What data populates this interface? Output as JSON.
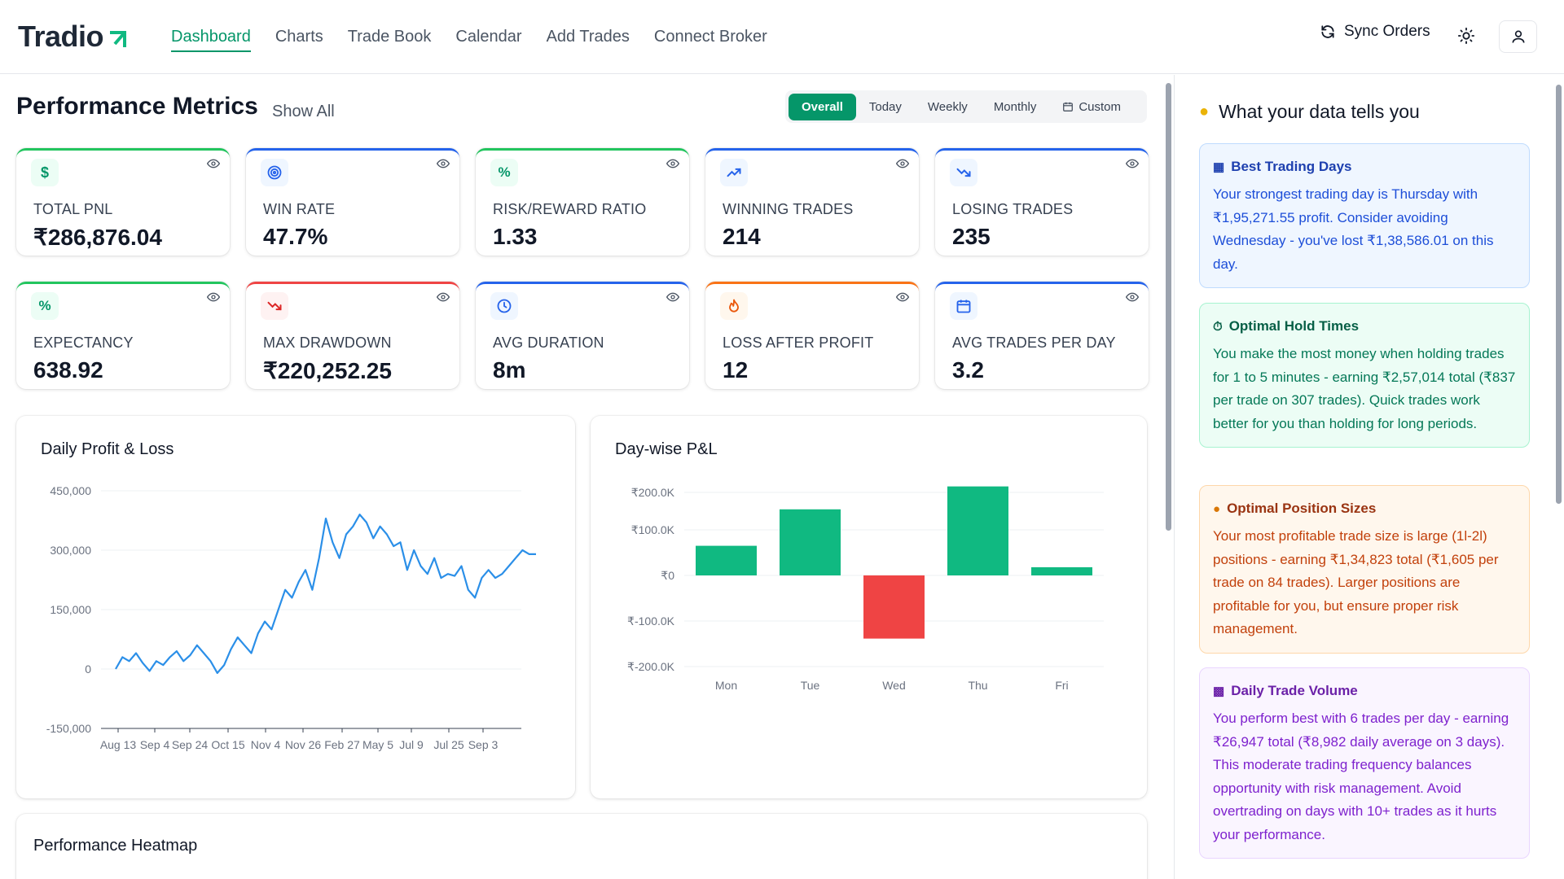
{
  "brand": {
    "name": "Tradio"
  },
  "nav": {
    "items": [
      "Dashboard",
      "Charts",
      "Trade Book",
      "Calendar",
      "Add Trades",
      "Connect Broker"
    ]
  },
  "header": {
    "sync_label": "Sync Orders"
  },
  "page": {
    "title": "Performance Metrics",
    "show_all": "Show All"
  },
  "filters": {
    "items": [
      "Overall",
      "Today",
      "Weekly",
      "Monthly",
      "Custom"
    ],
    "selected": "Overall"
  },
  "metrics": [
    {
      "label": "TOTAL PNL",
      "value": "₹286,876.04",
      "icon": "dollar-icon",
      "accent": "#22c55e"
    },
    {
      "label": "WIN RATE",
      "value": "47.7%",
      "icon": "target-icon",
      "accent": "#2563eb"
    },
    {
      "label": "RISK/REWARD RATIO",
      "value": "1.33",
      "icon": "percent-icon",
      "accent": "#22c55e"
    },
    {
      "label": "WINNING TRADES",
      "value": "214",
      "icon": "trending-up-icon",
      "accent": "#2563eb"
    },
    {
      "label": "LOSING TRADES",
      "value": "235",
      "icon": "trending-down-icon",
      "accent": "#2563eb"
    },
    {
      "label": "EXPECTANCY",
      "value": "638.92",
      "icon": "percent-icon",
      "accent": "#22c55e"
    },
    {
      "label": "MAX DRAWDOWN",
      "value": "₹220,252.25",
      "icon": "trending-down-icon",
      "accent": "#ef4444"
    },
    {
      "label": "AVG DURATION",
      "value": "8m",
      "icon": "clock-icon",
      "accent": "#2563eb"
    },
    {
      "label": "LOSS AFTER PROFIT",
      "value": "12",
      "icon": "flame-icon",
      "accent": "#f97316"
    },
    {
      "label": "AVG TRADES PER DAY",
      "value": "3.2",
      "icon": "calendar-icon",
      "accent": "#2563eb"
    }
  ],
  "panels": {
    "daily_pnl_title": "Daily Profit & Loss",
    "daywise_title": "Day-wise P&L",
    "heatmap_title": "Performance Heatmap"
  },
  "chart_data": [
    {
      "type": "line",
      "title": "Daily Profit & Loss",
      "ylim": [
        -150000,
        450000
      ],
      "y_ticks": [
        "450,000",
        "300,000",
        "150,000",
        "0",
        "-150,000"
      ],
      "x_ticks": [
        "Aug 13",
        "Sep 4",
        "Sep 24",
        "Oct 15",
        "Nov 4",
        "Nov 26",
        "Feb 27",
        "May 5",
        "Jul 9",
        "Jul 25",
        "Sep 3"
      ],
      "color": "#2b8fe8",
      "values": [
        0,
        30000,
        20000,
        40000,
        15000,
        -5000,
        20000,
        10000,
        30000,
        45000,
        20000,
        35000,
        60000,
        40000,
        20000,
        -10000,
        10000,
        50000,
        80000,
        60000,
        40000,
        90000,
        120000,
        100000,
        150000,
        200000,
        180000,
        220000,
        250000,
        200000,
        280000,
        380000,
        320000,
        280000,
        340000,
        360000,
        390000,
        370000,
        330000,
        360000,
        340000,
        310000,
        320000,
        250000,
        300000,
        260000,
        240000,
        280000,
        230000,
        240000,
        235000,
        260000,
        200000,
        180000,
        230000,
        250000,
        230000,
        240000,
        260000,
        280000,
        300000,
        290000,
        290000
      ]
    },
    {
      "type": "bar",
      "title": "Day-wise P&L",
      "categories": [
        "Mon",
        "Tue",
        "Wed",
        "Thu",
        "Fri"
      ],
      "values": [
        65000,
        145000,
        -138586.01,
        195271.55,
        18000
      ],
      "y_ticks": [
        "₹200.0K",
        "₹100.0K",
        "₹0",
        "₹-100.0K",
        "₹-200.0K"
      ],
      "ylim": [
        -200000,
        200000
      ],
      "colors": {
        "positive": "#10b981",
        "negative": "#ef4444"
      }
    }
  ],
  "insights": {
    "title": "What your data tells you",
    "items": [
      {
        "title": "Best Trading Days",
        "body": "Your strongest trading day is Thursday with ₹1,95,271.55 profit. Consider avoiding Wednesday - you've lost ₹1,38,586.01 on this day.",
        "icon": "calendar-icon",
        "theme": "blue"
      },
      {
        "title": "Optimal Hold Times",
        "body": "You make the most money when holding trades for 1 to 5 minutes - earning ₹2,57,014 total (₹837 per trade on 307 trades). Quick trades work better for you than holding for long periods.",
        "icon": "stopwatch-icon",
        "theme": "green"
      },
      {
        "title": "Optimal Position Sizes",
        "body": "Your most profitable trade size is large (1l-2l) positions - earning ₹1,34,823 total (₹1,605 per trade on 84 trades). Larger positions are profitable for you, but ensure proper risk management.",
        "icon": "money-bag-icon",
        "theme": "orange"
      },
      {
        "title": "Daily Trade Volume",
        "body": "You perform best with 6 trades per day - earning ₹26,947 total (₹8,982 daily average on 3 days). This moderate trading frequency balances opportunity with risk management. Avoid overtrading on days with 10+ trades as it hurts your performance.",
        "icon": "bar-chart-icon",
        "theme": "purple"
      }
    ]
  }
}
